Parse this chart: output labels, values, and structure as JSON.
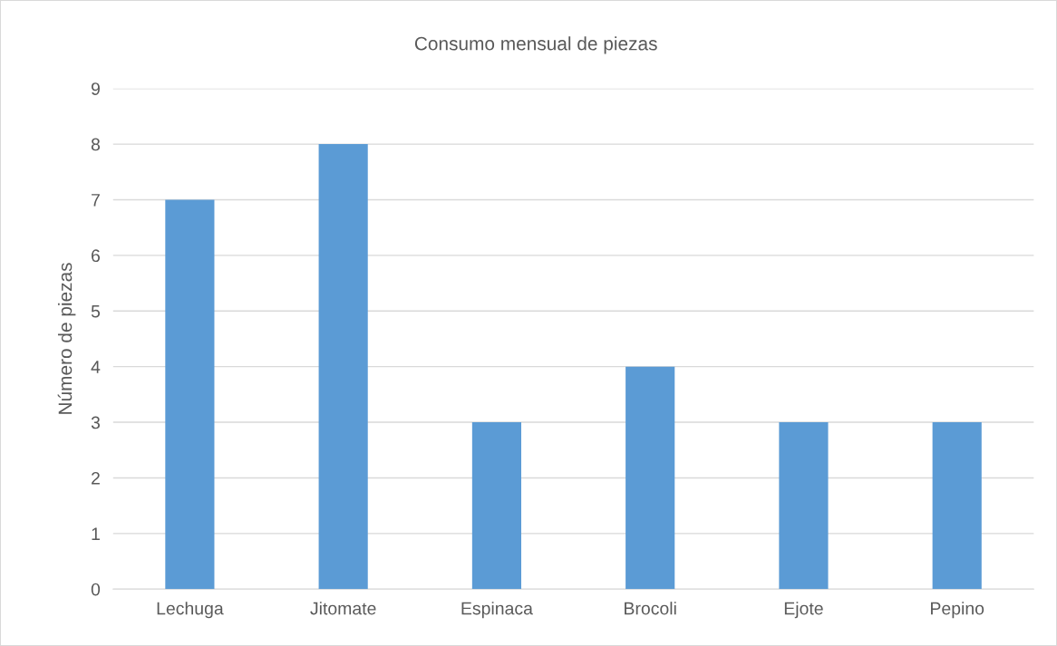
{
  "chart_data": {
    "type": "bar",
    "title": "Consumo mensual de piezas",
    "ylabel": "Número de piezas",
    "categories": [
      "Lechuga",
      "Jitomate",
      "Espinaca",
      "Brocoli",
      "Ejote",
      "Pepino"
    ],
    "values": [
      7,
      8,
      3,
      4,
      3,
      3
    ],
    "color": "#5b9bd5",
    "ylim": [
      0,
      9
    ],
    "yticks": [
      0,
      1,
      2,
      3,
      4,
      5,
      6,
      7,
      8,
      9
    ],
    "grid": "y",
    "legend": false
  }
}
